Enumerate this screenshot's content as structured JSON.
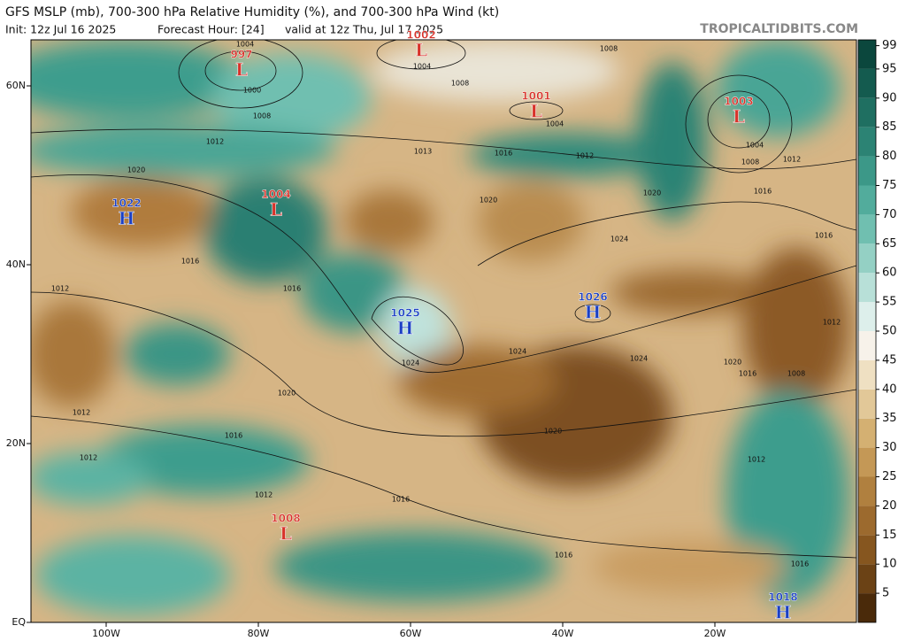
{
  "header": {
    "title": "GFS MSLP (mb), 700-300 hPa Relative Humidity (%), and 700-300 hPa Wind (kt)",
    "init": "Init: 12z Jul 16 2025",
    "forecast_hour": "Forecast Hour: [24]",
    "valid": "valid at 12z Thu, Jul 17 2025",
    "source": "TROPICALTIDBITS.COM"
  },
  "map": {
    "lat_ticks": [
      {
        "value": 60,
        "label": "60N"
      },
      {
        "value": 40,
        "label": "40N"
      },
      {
        "value": 20,
        "label": "20N"
      },
      {
        "value": 0,
        "label": "EQ"
      }
    ],
    "lon_ticks": [
      {
        "value": -100,
        "label": "100W"
      },
      {
        "value": -80,
        "label": "80W"
      },
      {
        "value": -60,
        "label": "60W"
      },
      {
        "value": -40,
        "label": "40W"
      },
      {
        "value": -20,
        "label": "20W"
      }
    ],
    "pressure_centers": [
      {
        "type": "L",
        "value": 997
      },
      {
        "type": "L",
        "value": 1002
      },
      {
        "type": "L",
        "value": 1001
      },
      {
        "type": "L",
        "value": 1003
      },
      {
        "type": "H",
        "value": 1022
      },
      {
        "type": "L",
        "value": 1004
      },
      {
        "type": "H",
        "value": 1025
      },
      {
        "type": "H",
        "value": 1026
      },
      {
        "type": "L",
        "value": 1008
      },
      {
        "type": "H",
        "value": 1018
      }
    ],
    "isobar_labels": [
      1004,
      1000,
      1008,
      1004,
      1008,
      1008,
      1004,
      1012,
      1020,
      1012,
      1016,
      1013,
      1020,
      1020,
      1024,
      1004,
      1008,
      1012,
      1016,
      1016,
      1016,
      1012,
      1016,
      1024,
      1024,
      1024,
      1020,
      1016,
      1008,
      1012,
      1020,
      1012,
      1016,
      1020,
      1012,
      1012,
      1016,
      1012,
      1016,
      1016
    ]
  },
  "colorbar": {
    "lim": [
      0,
      100
    ],
    "ticks": [
      5,
      10,
      15,
      20,
      25,
      30,
      35,
      40,
      45,
      50,
      55,
      60,
      65,
      70,
      75,
      80,
      85,
      90,
      95,
      99
    ]
  }
}
